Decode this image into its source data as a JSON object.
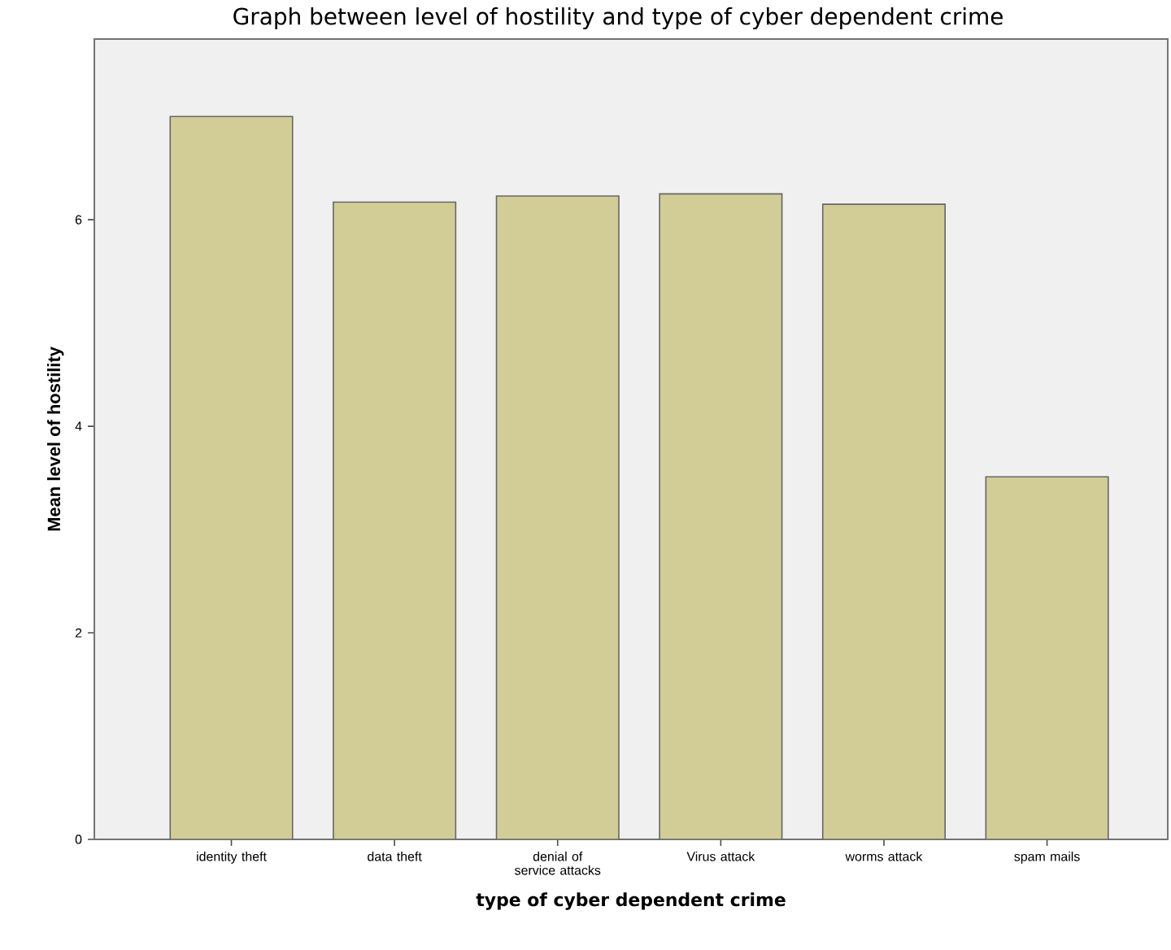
{
  "chart_data": {
    "type": "bar",
    "title": "Graph between level of hostility and type of cyber dependent crime",
    "xlabel": "type of cyber dependent crime",
    "ylabel": "Mean level of hostility",
    "categories": [
      "identity theft",
      "data theft",
      "denial of service attacks",
      "Virus attack",
      "worms attack",
      "spam mails"
    ],
    "values": [
      7.0,
      6.17,
      6.23,
      6.25,
      6.15,
      3.51
    ],
    "color": "#d2cd97",
    "ylim": [
      0,
      7.75
    ],
    "yticks": [
      0,
      2,
      4,
      6
    ],
    "grid": false
  }
}
